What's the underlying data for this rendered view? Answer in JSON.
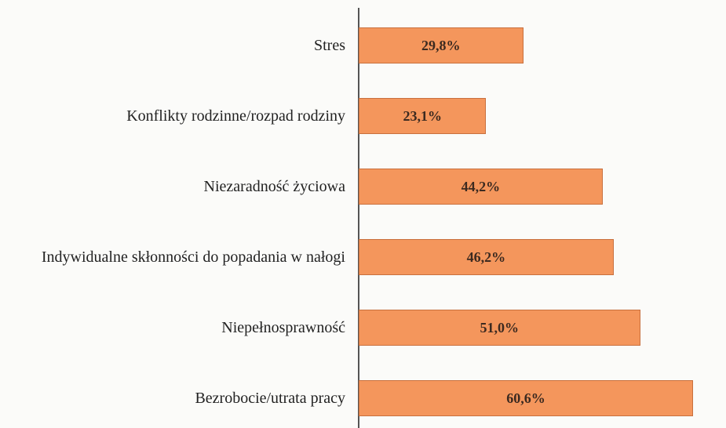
{
  "chart_data": {
    "type": "bar",
    "orientation": "horizontal",
    "categories": [
      "Stres",
      "Konflikty rodzinne/rozpad rodziny",
      "Niezaradność życiowa",
      "Indywidualne skłonności do popadania w nałogi",
      "Niepełnosprawność",
      "Bezrobocie/utrata pracy"
    ],
    "values": [
      29.8,
      23.1,
      44.2,
      46.2,
      51.0,
      60.6
    ],
    "value_labels": [
      "29,8%",
      "23,1%",
      "44,2%",
      "46,2%",
      "51,0%",
      "60,6%"
    ],
    "color": "#f4965c",
    "xlim": [
      0,
      66
    ]
  }
}
